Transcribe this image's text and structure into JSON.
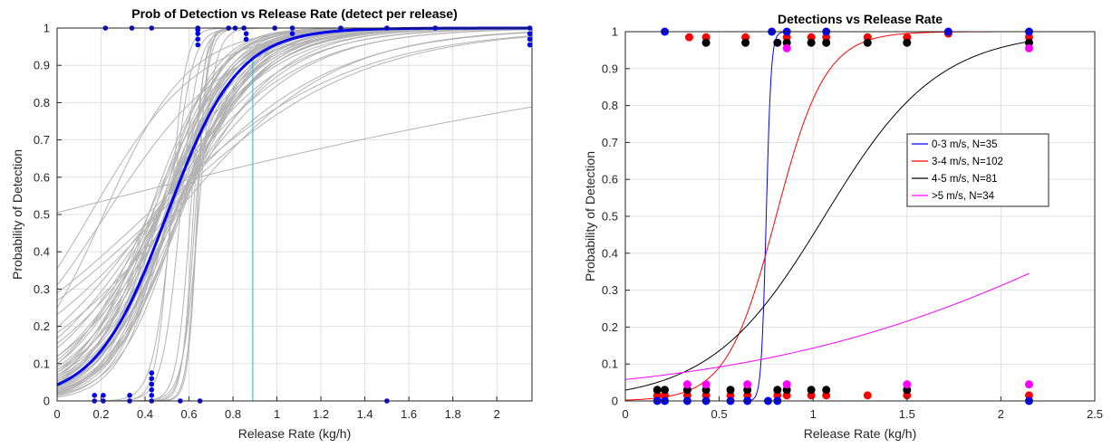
{
  "chart_data": [
    {
      "type": "line",
      "title": "Prob of Detection vs Release Rate (detect per release)",
      "xlabel": "Release Rate (kg/h)",
      "ylabel": "Probability of Detection",
      "xlim": [
        0,
        2.16
      ],
      "ylim": [
        0,
        1
      ],
      "xticks": [
        0,
        0.2,
        0.4,
        0.6,
        0.8,
        1,
        1.2,
        1.4,
        1.6,
        1.8,
        2
      ],
      "xtick_labels": [
        "0",
        "0.2",
        "0.4",
        "0.6",
        "0.8",
        "1",
        "1.2",
        "1.4",
        "1.6",
        "1.8",
        "2"
      ],
      "yticks": [
        0,
        0.1,
        0.2,
        0.3,
        0.4,
        0.5,
        0.6,
        0.7,
        0.8,
        0.9,
        1
      ],
      "ytick_labels": [
        "0",
        "0.1",
        "0.2",
        "0.3",
        "0.4",
        "0.5",
        "0.6",
        "0.7",
        "0.8",
        "0.9",
        "1"
      ],
      "grid": true,
      "colors": {
        "main": "#0000ee",
        "bootstrap": "#b3b3b3",
        "vline": "#2ab0c0",
        "points": "#0000ee"
      },
      "mean_fit": {
        "logit_intercept": -3.1,
        "logit_slope": 6.2
      },
      "vertical_line_x": 0.89,
      "bootstrap_fits": [
        [
          -3.1,
          6.2
        ],
        [
          -2.6,
          5.6
        ],
        [
          -3.6,
          7.0
        ],
        [
          -2.2,
          4.8
        ],
        [
          -4.0,
          7.8
        ],
        [
          -2.9,
          5.5
        ],
        [
          -3.4,
          6.9
        ],
        [
          -2.5,
          5.0
        ],
        [
          -3.8,
          7.4
        ],
        [
          -2.0,
          4.3
        ],
        [
          -3.3,
          6.6
        ],
        [
          -2.8,
          6.0
        ],
        [
          -3.0,
          5.4
        ],
        [
          -4.3,
          8.5
        ],
        [
          -2.4,
          5.2
        ],
        [
          -3.5,
          6.2
        ],
        [
          -2.7,
          6.5
        ],
        [
          -3.2,
          6.8
        ],
        [
          -1.8,
          4.0
        ],
        [
          -3.7,
          6.7
        ],
        [
          -2.3,
          4.6
        ],
        [
          -3.9,
          8.0
        ],
        [
          -2.9,
          6.3
        ],
        [
          -3.1,
          5.8
        ],
        [
          -4.6,
          9.0
        ],
        [
          -2.1,
          4.6
        ],
        [
          -3.3,
          7.2
        ],
        [
          -2.6,
          4.9
        ],
        [
          -3.6,
          6.5
        ],
        [
          -2.5,
          5.8
        ],
        [
          -1.6,
          3.6
        ],
        [
          -3.0,
          6.9
        ],
        [
          -4.1,
          7.4
        ],
        [
          -2.8,
          5.2
        ],
        [
          -3.4,
          6.1
        ],
        [
          -2.2,
          5.3
        ],
        [
          -3.8,
          8.2
        ],
        [
          -2.7,
          5.1
        ],
        [
          -3.2,
          6.0
        ],
        [
          -2.4,
          4.4
        ],
        [
          -1.4,
          3.2
        ],
        [
          -2.0,
          3.9
        ],
        [
          -1.5,
          2.8
        ],
        [
          -1.2,
          2.6
        ],
        [
          -1.7,
          3.4
        ],
        [
          -12,
          23
        ],
        [
          -16,
          31
        ],
        [
          -20,
          33
        ],
        [
          -22,
          35
        ],
        [
          -28,
          44
        ],
        [
          -14,
          25
        ],
        [
          -30,
          47
        ],
        [
          -18,
          28
        ],
        [
          -26,
          42
        ],
        [
          -1.1,
          5.2
        ],
        [
          -0.6,
          4.0
        ],
        [
          -0.8,
          3.6
        ],
        [
          0.02,
          0.6
        ],
        [
          -0.9,
          2.2
        ],
        [
          -1.0,
          2.2
        ]
      ],
      "points": {
        "detected_x": [
          0.22,
          0.34,
          0.43,
          0.64,
          0.64,
          0.64,
          0.64,
          0.64,
          0.78,
          0.81,
          0.85,
          0.86,
          0.86,
          0.99,
          1.07,
          1.07,
          1.29,
          1.5,
          1.72,
          2.15,
          2.15,
          2.15,
          2.15
        ],
        "detected_y": [
          1,
          1,
          1,
          1,
          0.985,
          0.97,
          0.955,
          0.995,
          1,
          1,
          1,
          0.985,
          0.97,
          1,
          1,
          0.985,
          1,
          1,
          1,
          1,
          0.985,
          0.97,
          0.955
        ],
        "missed_x": [
          0.17,
          0.17,
          0.21,
          0.21,
          0.33,
          0.33,
          0.43,
          0.43,
          0.43,
          0.43,
          0.43,
          0.43,
          0.56,
          0.65,
          1.5
        ],
        "missed_y": [
          0,
          0.015,
          0,
          0.015,
          0,
          0.015,
          0,
          0.015,
          0.03,
          0.045,
          0.06,
          0.075,
          0,
          0,
          0
        ]
      }
    },
    {
      "type": "line",
      "title": "Detections vs Release Rate",
      "xlabel": "Release Rate (kg/h)",
      "ylabel": "Probability of Detection",
      "xlim": [
        0,
        2.5
      ],
      "ylim": [
        0,
        1
      ],
      "xticks": [
        0,
        0.5,
        1,
        1.5,
        2,
        2.5
      ],
      "xtick_labels": [
        "0",
        "0.5",
        "1",
        "1.5",
        "2",
        "2.5"
      ],
      "yticks": [
        0,
        0.1,
        0.2,
        0.3,
        0.4,
        0.5,
        0.6,
        0.7,
        0.8,
        0.9,
        1
      ],
      "ytick_labels": [
        "0",
        "0.1",
        "0.2",
        "0.3",
        "0.4",
        "0.5",
        "0.6",
        "0.7",
        "0.8",
        "0.9",
        "1"
      ],
      "grid": true,
      "legend_position": "right-middle",
      "series": [
        {
          "name": "0-3 m/s, N=35",
          "color": "#0000ff",
          "logit": [
            -57.4,
            76.5
          ],
          "detected_x": [
            0.21,
            0.78,
            0.86,
            1.07,
            1.72,
            2.15
          ],
          "detected_y": [
            1,
            1,
            1,
            1,
            1,
            1
          ],
          "missed_x": [
            0.17,
            0.21,
            0.33,
            0.43,
            0.56,
            0.65,
            0.76,
            0.81,
            2.15
          ],
          "missed_y": [
            0,
            0,
            0,
            0,
            0,
            0,
            0,
            0,
            0
          ]
        },
        {
          "name": "3-4 m/s, N=102",
          "color": "#ff0000",
          "logit": [
            -6.1,
            7.6
          ],
          "detected_x": [
            0.34,
            0.43,
            0.64,
            0.86,
            0.99,
            1.07,
            1.29,
            1.5,
            1.72,
            2.15
          ],
          "detected_y": [
            0.985,
            0.985,
            0.985,
            0.985,
            0.985,
            0.985,
            0.985,
            0.985,
            0.995,
            0.985
          ],
          "missed_x": [
            0.17,
            0.21,
            0.33,
            0.43,
            0.56,
            0.65,
            0.81,
            0.86,
            0.99,
            1.07,
            1.29,
            1.5,
            2.15
          ],
          "missed_y": [
            0.015,
            0.015,
            0.015,
            0.015,
            0.015,
            0.015,
            0.015,
            0.015,
            0.015,
            0.015,
            0.015,
            0.015,
            0.015
          ]
        },
        {
          "name": "4-5 m/s, N=81",
          "color": "#000000",
          "logit": [
            -3.5,
            3.3
          ],
          "detected_x": [
            0.43,
            0.64,
            0.81,
            0.86,
            0.99,
            1.07,
            1.29,
            1.5,
            2.15
          ],
          "detected_y": [
            0.97,
            0.97,
            0.97,
            0.97,
            0.97,
            0.97,
            0.97,
            0.97,
            0.97
          ],
          "missed_x": [
            0.17,
            0.21,
            0.33,
            0.43,
            0.56,
            0.65,
            0.81,
            0.86,
            0.99,
            1.07,
            1.5
          ],
          "missed_y": [
            0.03,
            0.03,
            0.03,
            0.03,
            0.03,
            0.03,
            0.03,
            0.03,
            0.03,
            0.03,
            0.03
          ]
        },
        {
          "name": ">5 m/s, N=34",
          "color": "#ff00ff",
          "logit": [
            -2.79,
            1.0
          ],
          "detected_x": [
            0.86,
            2.15
          ],
          "detected_y": [
            0.955,
            0.955
          ],
          "missed_x": [
            0.33,
            0.43,
            0.65,
            0.86,
            1.5,
            2.15
          ],
          "missed_y": [
            0.045,
            0.045,
            0.045,
            0.045,
            0.045,
            0.045
          ]
        }
      ]
    }
  ]
}
